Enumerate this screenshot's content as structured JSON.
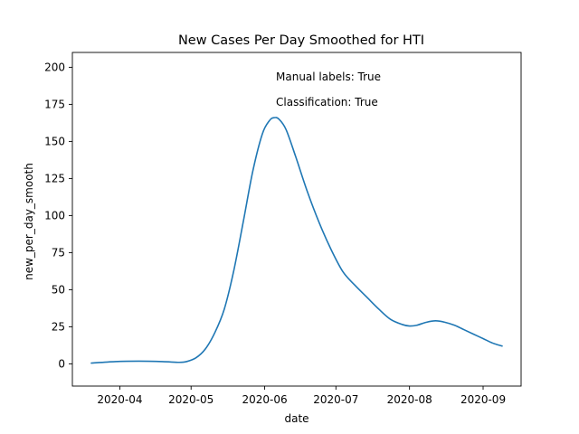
{
  "chart_data": {
    "type": "line",
    "title": "New Cases Per Day Smoothed for HTI",
    "xlabel": "date",
    "ylabel": "new_per_day_smooth",
    "xlim": [
      "2020-03-12",
      "2020-09-17"
    ],
    "ylim": [
      -15,
      210
    ],
    "x_ticks": [
      "2020-04",
      "2020-05",
      "2020-06",
      "2020-07",
      "2020-08",
      "2020-09"
    ],
    "y_ticks": [
      0,
      25,
      50,
      75,
      100,
      125,
      150,
      175,
      200
    ],
    "grid": false,
    "annotations": [
      "Manual labels: True",
      "Classification: True"
    ],
    "color": "#1f77b4",
    "series": [
      {
        "x": [
          "2020-03-20",
          "2020-03-30",
          "2020-04-09",
          "2020-04-19",
          "2020-04-26",
          "2020-04-29",
          "2020-05-03",
          "2020-05-07",
          "2020-05-11",
          "2020-05-15",
          "2020-05-19",
          "2020-05-23",
          "2020-05-27",
          "2020-05-31",
          "2020-06-03",
          "2020-06-05",
          "2020-06-07",
          "2020-06-10",
          "2020-06-14",
          "2020-06-19",
          "2020-06-24",
          "2020-06-29",
          "2020-07-04",
          "2020-07-09",
          "2020-07-14",
          "2020-07-19",
          "2020-07-24",
          "2020-07-29",
          "2020-08-01",
          "2020-08-04",
          "2020-08-08",
          "2020-08-12",
          "2020-08-16",
          "2020-08-20",
          "2020-08-24",
          "2020-08-28",
          "2020-09-01",
          "2020-09-05",
          "2020-09-09"
        ],
        "y": [
          0.5,
          1.5,
          1.8,
          1.5,
          1,
          1.5,
          4,
          10,
          21,
          37,
          63,
          96,
          130,
          155,
          164,
          166,
          165,
          158,
          140,
          116,
          95,
          77,
          62,
          53,
          45,
          37,
          30,
          26.5,
          25.5,
          26,
          28,
          29,
          28,
          26,
          23,
          20,
          17,
          14,
          12
        ]
      }
    ]
  }
}
